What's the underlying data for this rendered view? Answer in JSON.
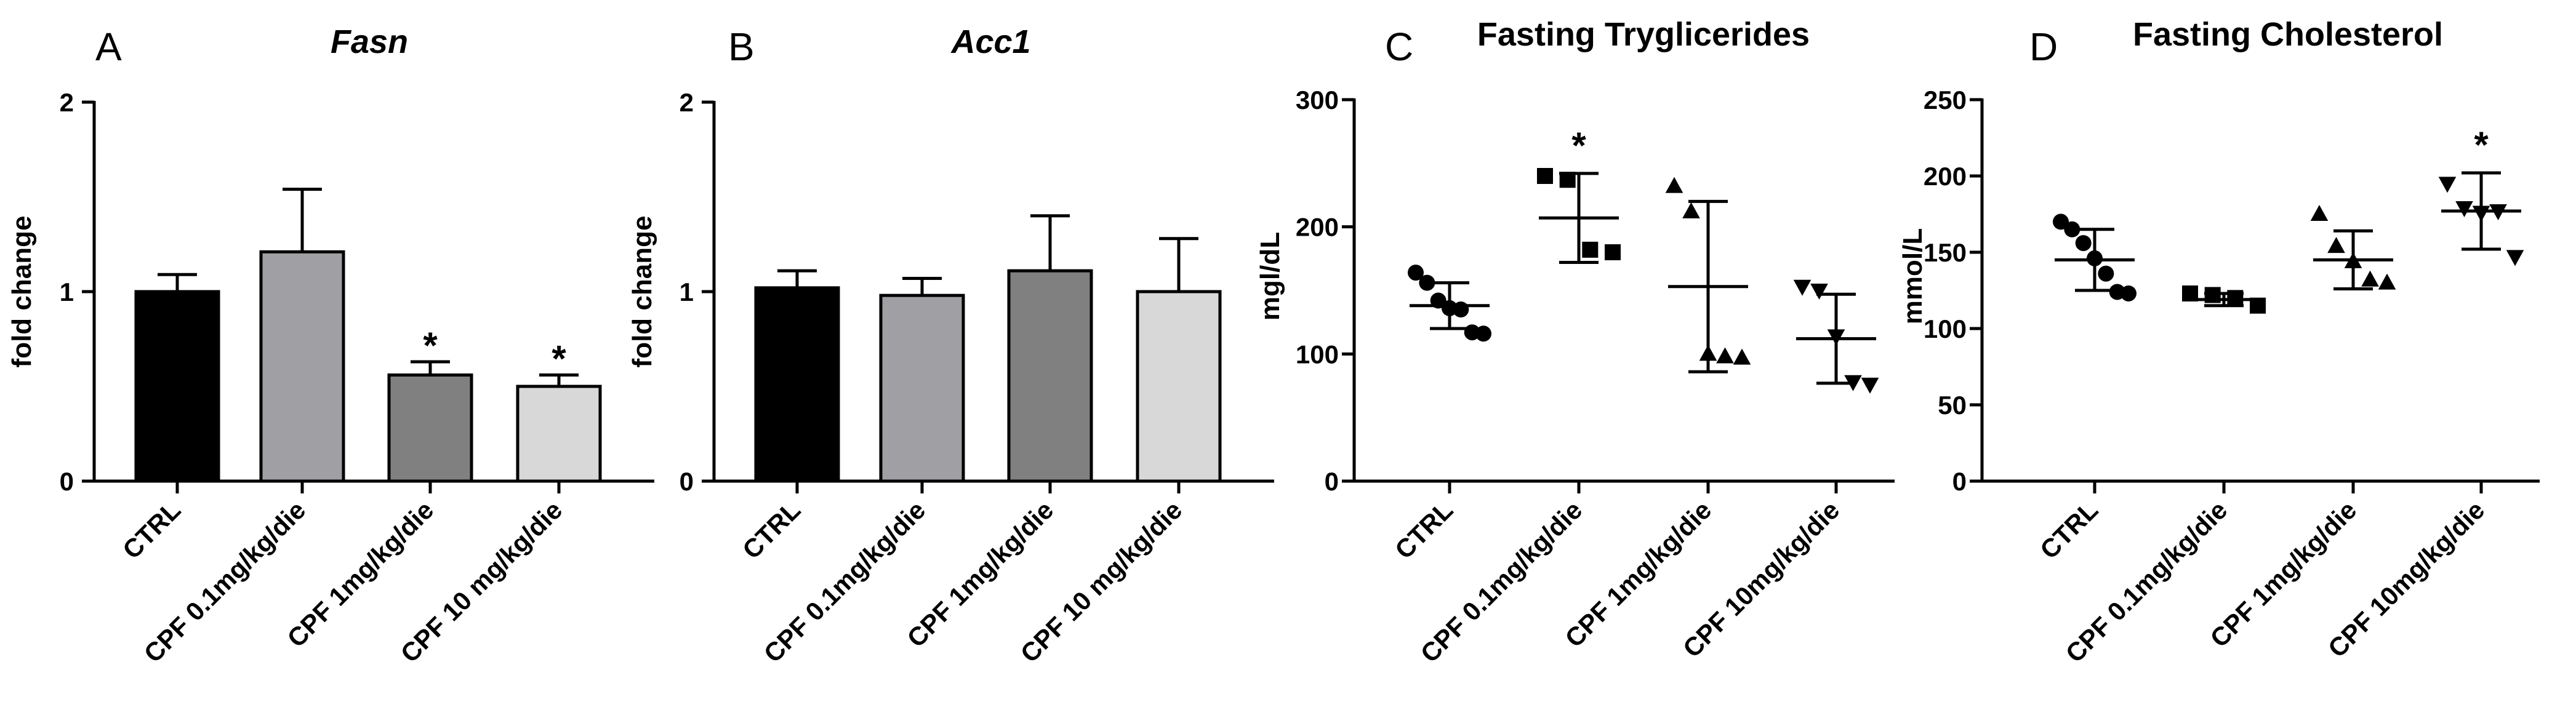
{
  "chart_data": [
    {
      "panel": "A",
      "type": "bar",
      "title": "Fasn",
      "title_italic": true,
      "ylabel": "fold change",
      "ylim": [
        0,
        2
      ],
      "yticks": [
        "0",
        "1",
        "2"
      ],
      "categories": [
        "CTRL",
        "CPF 0.1mg/kg/die",
        "CPF 1mg/kg/die",
        "CPF 10 mg/kg/die"
      ],
      "values": [
        1.0,
        1.21,
        0.56,
        0.5
      ],
      "errors": [
        0.09,
        0.33,
        0.07,
        0.06
      ],
      "fills": [
        "#000000",
        "#a0a0a4",
        "#808080",
        "#d8d8d8"
      ],
      "significance": [
        "",
        "",
        "*",
        "*"
      ]
    },
    {
      "panel": "B",
      "type": "bar",
      "title": "Acc1",
      "title_italic": true,
      "ylabel": "fold change",
      "ylim": [
        0,
        2
      ],
      "yticks": [
        "0",
        "1",
        "2"
      ],
      "categories": [
        "CTRL",
        "CPF 0.1mg/kg/die",
        "CPF 1mg/kg/die",
        "CPF 10 mg/kg/die"
      ],
      "values": [
        1.02,
        0.98,
        1.11,
        1.0
      ],
      "errors": [
        0.09,
        0.09,
        0.29,
        0.28
      ],
      "fills": [
        "#000000",
        "#a0a0a4",
        "#808080",
        "#d8d8d8"
      ],
      "significance": [
        "",
        "",
        "",
        ""
      ]
    },
    {
      "panel": "C",
      "type": "scatter",
      "title": "Fasting Tryglicerides",
      "title_italic": false,
      "ylabel": "mgl/dL",
      "ylim": [
        0,
        300
      ],
      "yticks": [
        "0",
        "100",
        "200",
        "300"
      ],
      "categories": [
        "CTRL",
        "CPF 0.1mg/kg/die",
        "CPF 1mg/kg/die",
        "CPF 10mg/kg/die"
      ],
      "markers": [
        "circle",
        "square",
        "triangle-up",
        "triangle-down"
      ],
      "points": [
        [
          164,
          156,
          142,
          136,
          135,
          117,
          116
        ],
        [
          240,
          237,
          182,
          180
        ],
        [
          232,
          212,
          100,
          98,
          97
        ],
        [
          153,
          150,
          114,
          78,
          76
        ]
      ],
      "means": [
        138,
        207,
        153,
        112
      ],
      "sd": [
        18,
        35,
        67,
        35
      ],
      "significance": [
        "",
        "*",
        "",
        ""
      ]
    },
    {
      "panel": "D",
      "type": "scatter",
      "title": "Fasting Cholesterol",
      "title_italic": false,
      "ylabel": "mmol/L",
      "ylim": [
        0,
        250
      ],
      "yticks": [
        "0",
        "50",
        "100",
        "150",
        "200",
        "250"
      ],
      "categories": [
        "CTRL",
        "CPF 0.1mg/kg/die",
        "CPF 1mg/kg/die",
        "CPF 10mg/kg/die"
      ],
      "markers": [
        "circle",
        "square",
        "triangle-up",
        "triangle-down"
      ],
      "points": [
        [
          170,
          165,
          156,
          146,
          136,
          124,
          123
        ],
        [
          123,
          122,
          120,
          115
        ],
        [
          175,
          154,
          144,
          132,
          130
        ],
        [
          195,
          179,
          176,
          177,
          147
        ]
      ],
      "means": [
        145,
        119,
        145,
        177
      ],
      "sd": [
        20,
        4,
        19,
        25
      ],
      "significance": [
        "",
        "",
        "",
        "*"
      ]
    }
  ]
}
